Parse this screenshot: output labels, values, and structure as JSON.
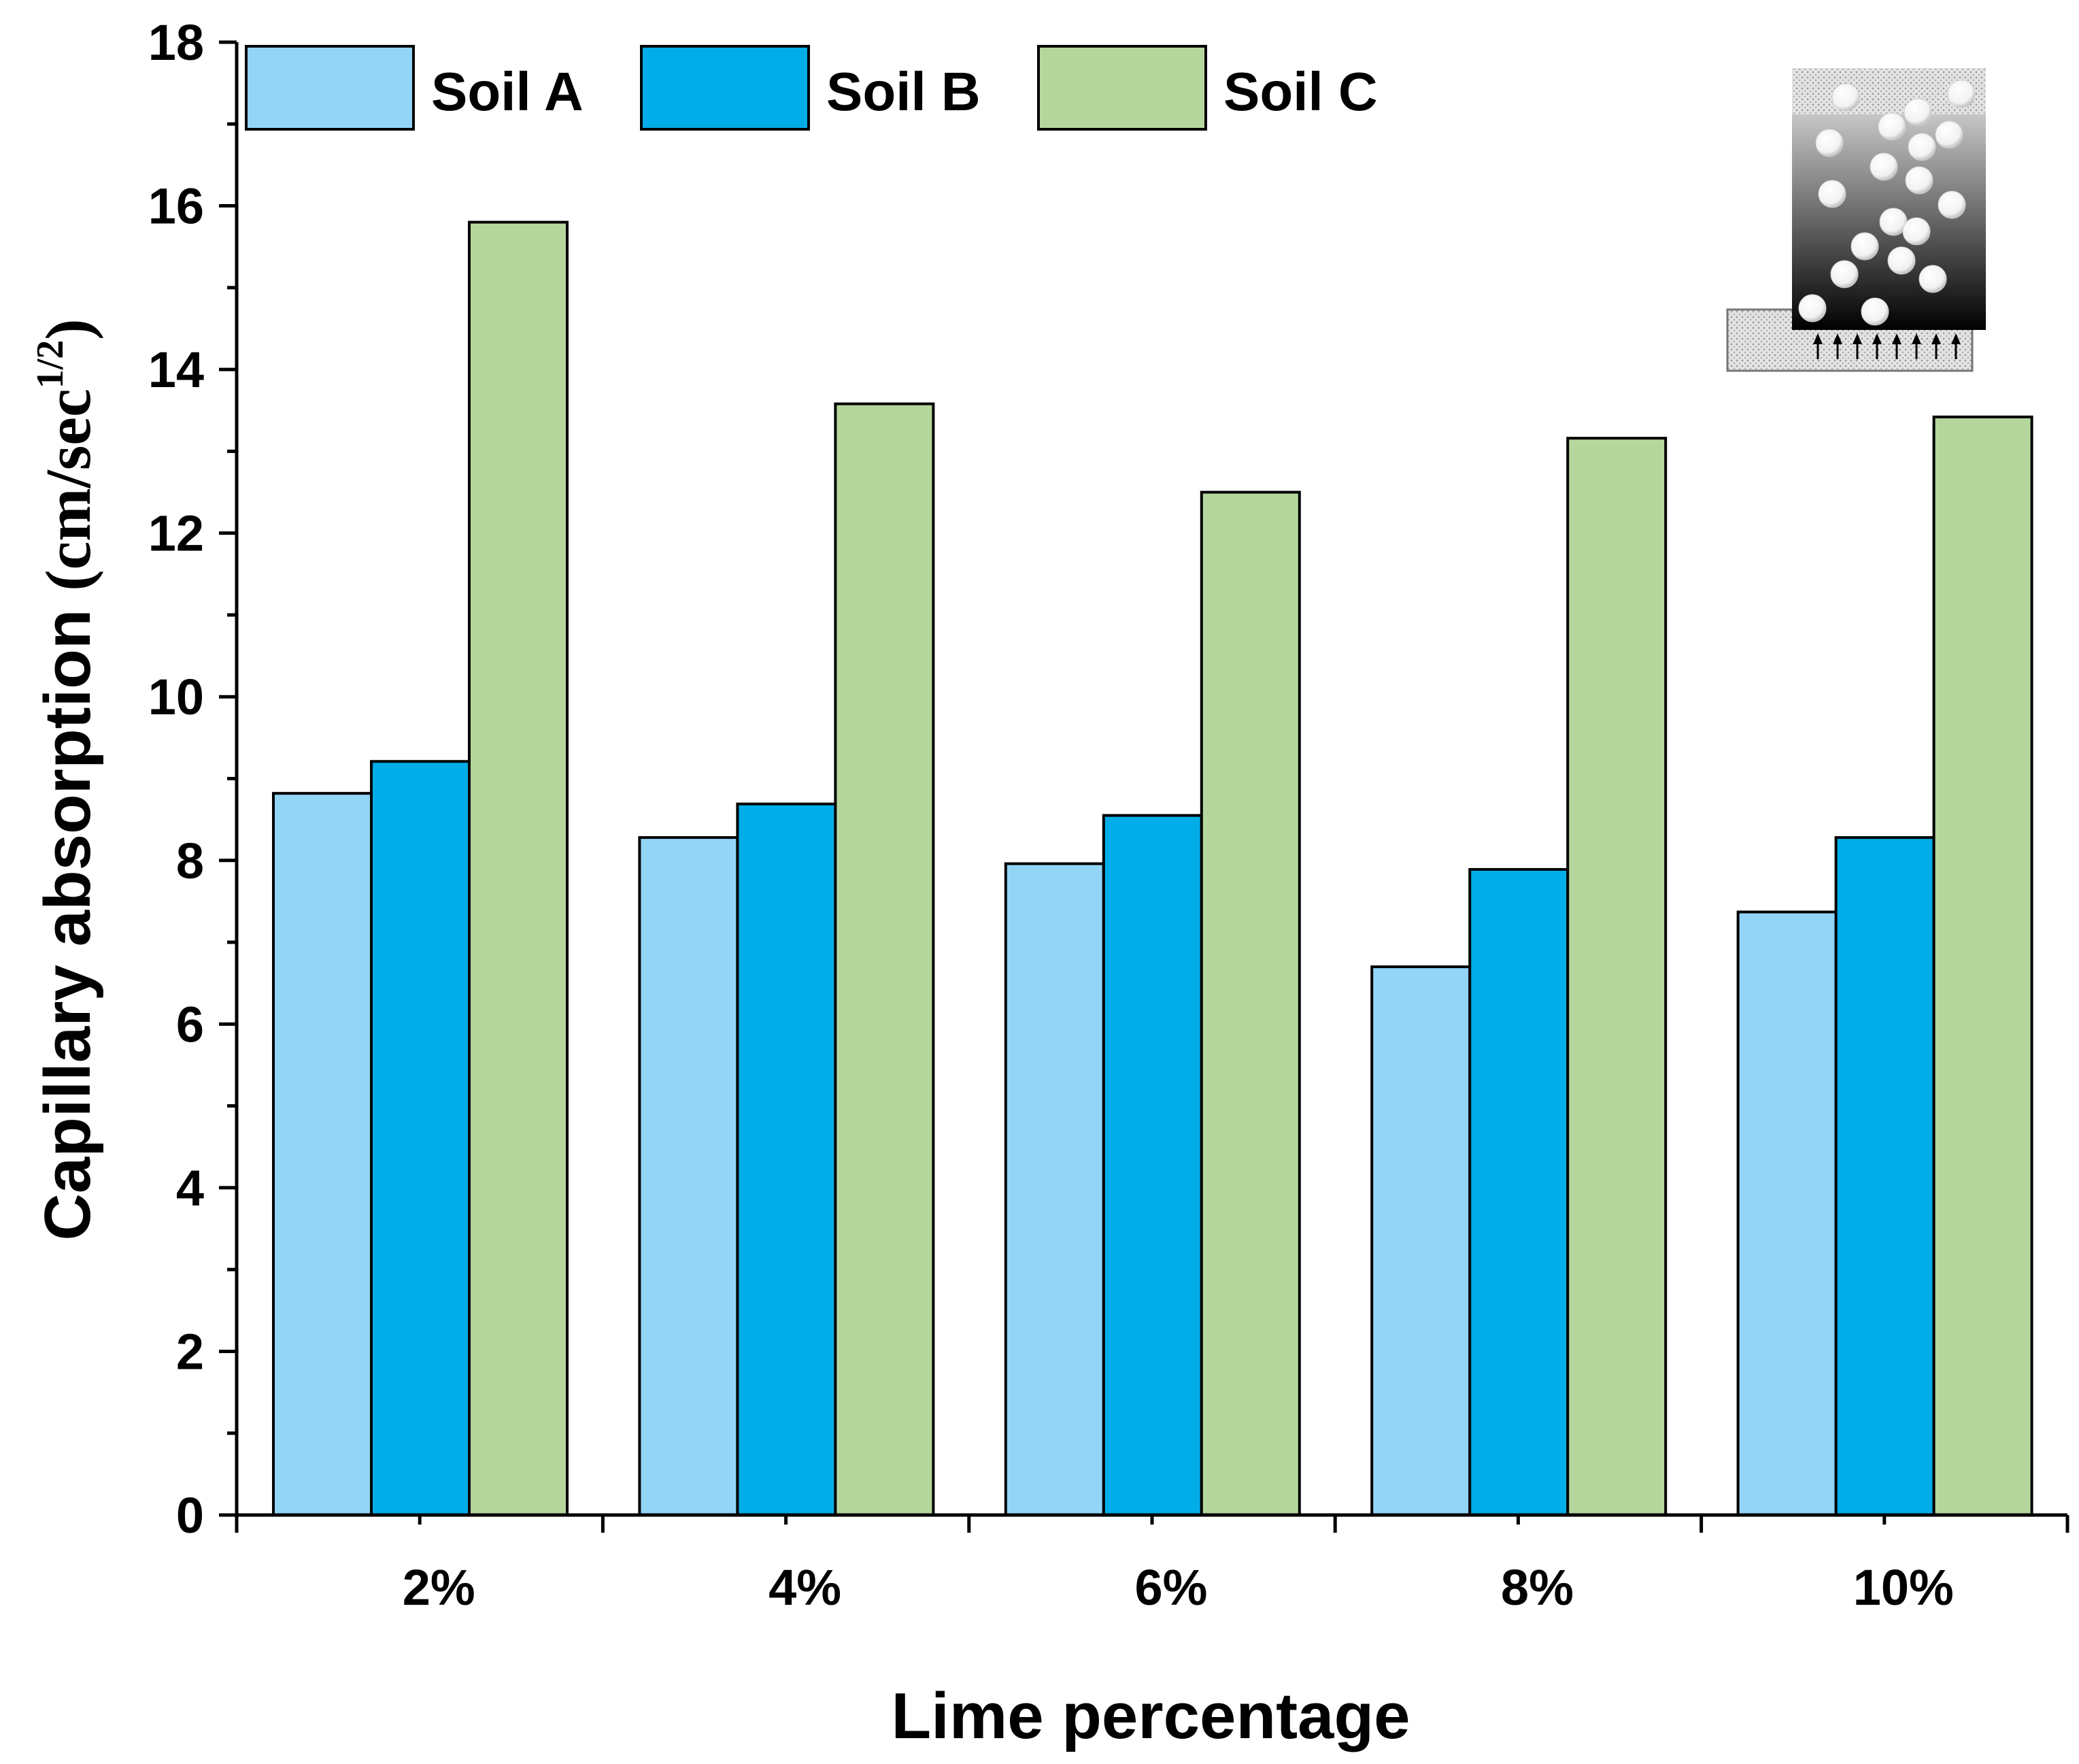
{
  "chart_data": {
    "type": "bar",
    "title": "",
    "xlabel": "Lime percentage",
    "ylabel_main": "Capillary absorption ",
    "ylabel_unit": "(cm/sec",
    "ylabel_exp": "1/2",
    "ylabel_close": ")",
    "ylim": [
      0,
      18
    ],
    "yticks": [
      "0",
      "2",
      "4",
      "6",
      "8",
      "10",
      "12",
      "14",
      "16",
      "18"
    ],
    "categories": [
      "2%",
      "4%",
      "6%",
      "8%",
      "10%"
    ],
    "series": [
      {
        "name": "Soil A",
        "color": "#93d5f6",
        "values": [
          8.82,
          8.28,
          7.96,
          6.7,
          7.37
        ]
      },
      {
        "name": "Soil B",
        "color": "#00ade8",
        "values": [
          9.21,
          8.69,
          8.55,
          7.89,
          8.28
        ]
      },
      {
        "name": "Soil C",
        "color": "#b5d79e",
        "values": [
          15.8,
          13.58,
          12.5,
          13.16,
          13.42
        ]
      }
    ],
    "legend_position": "top-left",
    "grid": false,
    "inset": "capillary-rise-schematic"
  }
}
